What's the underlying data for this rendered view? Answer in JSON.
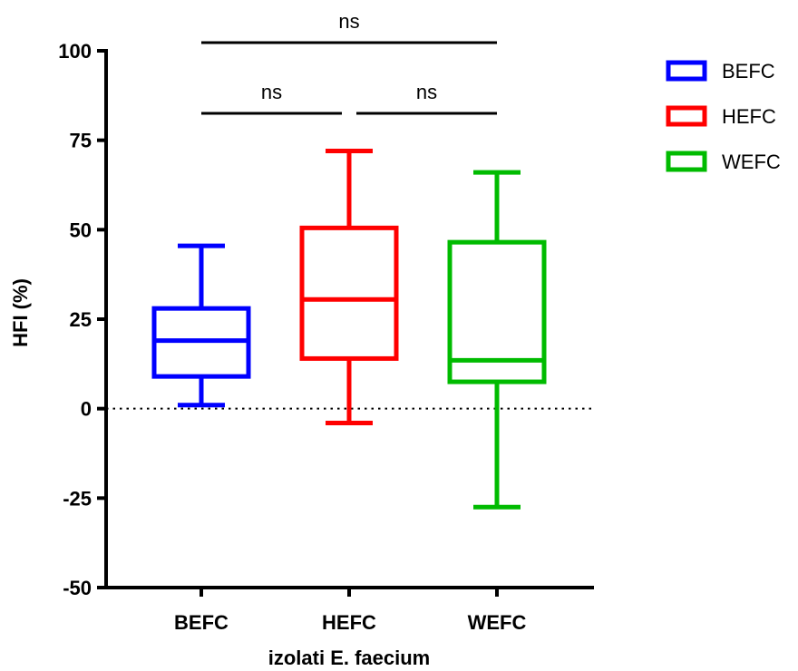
{
  "chart_data": {
    "type": "box",
    "ylabel": "HFI (%)",
    "xlabel": "izolati E. faecium",
    "ylim": [
      -50,
      100
    ],
    "yticks": [
      {
        "value": 100,
        "label": "100"
      },
      {
        "value": 75,
        "label": "75"
      },
      {
        "value": 50,
        "label": "50"
      },
      {
        "value": 25,
        "label": "25"
      },
      {
        "value": 0,
        "label": "0"
      },
      {
        "value": -25,
        "label": "-25"
      },
      {
        "value": -50,
        "label": "-50"
      }
    ],
    "categories": [
      "BEFC",
      "HEFC",
      "WEFC"
    ],
    "reference_line": {
      "y": 0,
      "style": "dotted"
    },
    "legend_position": "top-right",
    "series": [
      {
        "name": "BEFC",
        "color": "#0000ff",
        "min": 1,
        "q1": 9,
        "median": 19,
        "q3": 28,
        "max": 45.5
      },
      {
        "name": "HEFC",
        "color": "#ff0000",
        "min": -4,
        "q1": 14,
        "median": 30.5,
        "q3": 50.5,
        "max": 72
      },
      {
        "name": "WEFC",
        "color": "#00bb00",
        "min": -27.5,
        "q1": 7.5,
        "median": 13.5,
        "q3": 46.5,
        "max": 66
      }
    ],
    "comparisons": [
      {
        "from": 0,
        "to": 2,
        "label": "ns",
        "level": 2
      },
      {
        "from": 0,
        "to": 1,
        "label": "ns",
        "level": 1
      },
      {
        "from": 1,
        "to": 2,
        "label": "ns",
        "level": 1
      }
    ]
  }
}
